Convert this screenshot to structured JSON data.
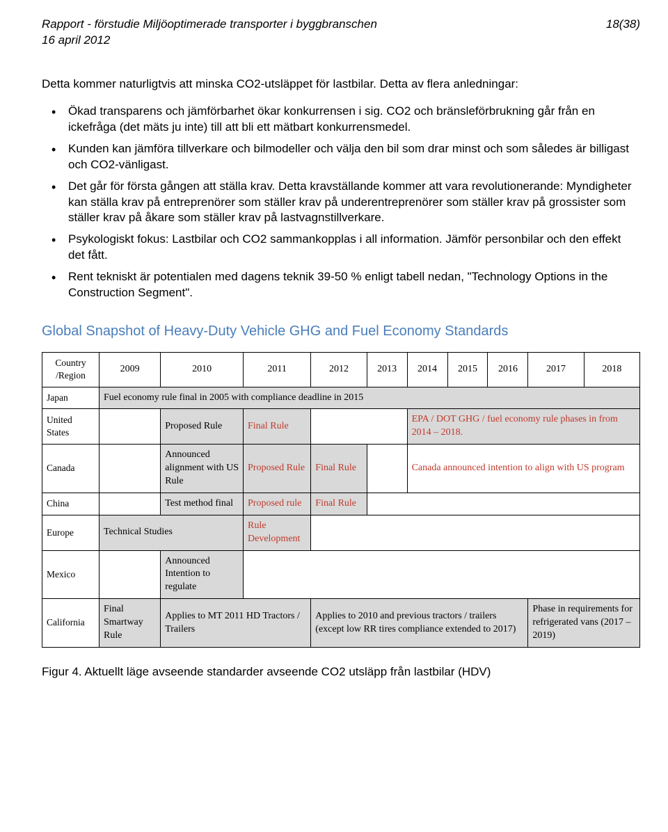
{
  "header": {
    "title_line1": "Rapport - förstudie Miljöoptimerade transporter i byggbranschen",
    "title_line2": "16 april 2012",
    "page_indicator": "18(38)"
  },
  "intro": "Detta kommer naturligtvis att minska CO2-utsläppet för lastbilar. Detta av flera anledningar:",
  "bullets": [
    "Ökad transparens och jämförbarhet ökar konkurrensen i sig. CO2 och bränsleförbrukning går från en ickefråga (det mäts ju inte) till att bli ett mätbart konkurrensmedel.",
    "Kunden kan jämföra tillverkare och bilmodeller och välja den bil som drar minst och som således är billigast och CO2-vänligast.",
    "Det går för första gången att ställa krav. Detta kravställande kommer att vara revolutionerande: Myndigheter kan ställa krav på entreprenörer som ställer krav på underentreprenörer som ställer krav på grossister som ställer krav på åkare som ställer krav på lastvagnstillverkare.",
    "Psykologiskt fokus: Lastbilar och CO2 sammankopplas i all information. Jämför personbilar och den effekt det fått.",
    "Rent tekniskt är potentialen med dagens teknik 39-50 % enligt tabell nedan, \"Technology Options in the Construction Segment\"."
  ],
  "figure": {
    "title": "Global Snapshot of Heavy-Duty Vehicle GHG and Fuel Economy Standards",
    "header_col0": "Country /Region",
    "years": [
      "2009",
      "2010",
      "2011",
      "2012",
      "2013",
      "2014",
      "2015",
      "2016",
      "2017",
      "2018"
    ],
    "rows": {
      "japan": {
        "label": "Japan",
        "text": "Fuel economy rule final in 2005 with compliance deadline in 2015"
      },
      "us": {
        "label": "United States",
        "c1": "",
        "c2": "Proposed Rule",
        "c3": "Final Rule",
        "phase": "EPA / DOT GHG / fuel economy rule phases in from 2014 – 2018."
      },
      "canada": {
        "label": "Canada",
        "c1": "",
        "c2": "Announced alignment with US Rule",
        "c3": "Proposed Rule",
        "c4": "Final Rule",
        "note": "Canada announced intention to align with US program"
      },
      "china": {
        "label": "China",
        "c1": "",
        "c2": "Test method final",
        "c3": "Proposed rule",
        "c4": "Final Rule"
      },
      "europe": {
        "label": "Europe",
        "c1": "Technical Studies",
        "c2": "Rule Development"
      },
      "mexico": {
        "label": "Mexico",
        "c1": "",
        "c2": "Announced Intention to regulate"
      },
      "california": {
        "label": "California",
        "c1": "Final Smartway Rule",
        "c2": "Applies to MT 2011 HD Tractors / Trailers",
        "c3": "Applies to 2010 and previous tractors / trailers (except low RR tires compliance extended to 2017)",
        "c4": "Phase in requirements for refrigerated vans (2017 – 2019)"
      }
    },
    "caption": "Figur 4. Aktuellt läge avseende standarder avseende CO2 utsläpp från lastbilar (HDV)"
  },
  "colors": {
    "title_blue": "#4a7ebb",
    "cell_gray": "#d9d9d9",
    "red_text": "#c0392b",
    "border": "#000000",
    "background": "#ffffff"
  }
}
